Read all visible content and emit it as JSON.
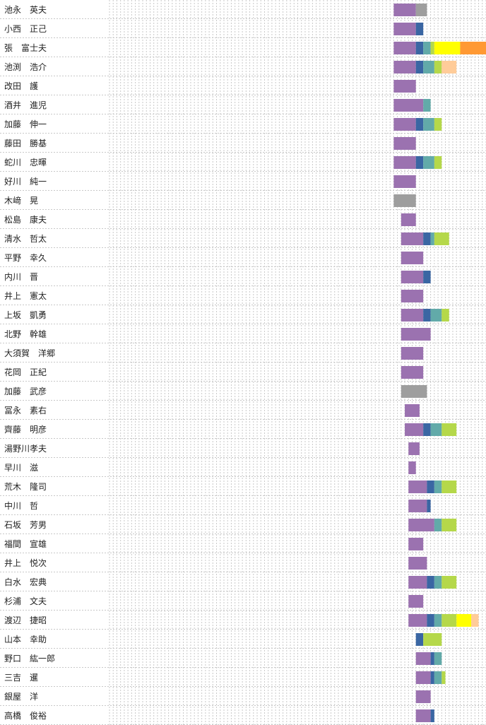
{
  "chart_data": {
    "type": "bar",
    "orientation": "horizontal-stacked-timeline",
    "grid": true,
    "colors": {
      "purple": "#9b72b0",
      "navy": "#3a66a3",
      "teal": "#62aaa9",
      "lime": "#b5d84a",
      "yellow": "#ffff00",
      "peach": "#ffcc99",
      "orange": "#ff9933",
      "gray": "#9e9e9e",
      "grid": "#c8c8c8",
      "row_divider": "#c8c8c8"
    },
    "x_unit": "grid columns",
    "x_range": [
      0,
      102
    ],
    "rows": [
      {
        "name": "池永　英夫",
        "segments": [
          {
            "start": 77,
            "len": 6,
            "color": "purple"
          },
          {
            "start": 83,
            "len": 3,
            "color": "gray"
          }
        ]
      },
      {
        "name": "小西　正己",
        "segments": [
          {
            "start": 77,
            "len": 6,
            "color": "purple"
          },
          {
            "start": 83,
            "len": 2,
            "color": "navy"
          }
        ]
      },
      {
        "name": "張　富士夫",
        "segments": [
          {
            "start": 77,
            "len": 6,
            "color": "purple"
          },
          {
            "start": 83,
            "len": 2,
            "color": "navy"
          },
          {
            "start": 85,
            "len": 2,
            "color": "teal"
          },
          {
            "start": 87,
            "len": 1,
            "color": "lime"
          },
          {
            "start": 88,
            "len": 7,
            "color": "yellow"
          },
          {
            "start": 95,
            "len": 7,
            "color": "orange"
          }
        ]
      },
      {
        "name": "池渕　浩介",
        "segments": [
          {
            "start": 77,
            "len": 6,
            "color": "purple"
          },
          {
            "start": 83,
            "len": 2,
            "color": "navy"
          },
          {
            "start": 85,
            "len": 3,
            "color": "teal"
          },
          {
            "start": 88,
            "len": 2,
            "color": "lime"
          },
          {
            "start": 90,
            "len": 4,
            "color": "peach"
          }
        ]
      },
      {
        "name": "改田　護",
        "segments": [
          {
            "start": 77,
            "len": 6,
            "color": "purple"
          }
        ]
      },
      {
        "name": "酒井　進児",
        "segments": [
          {
            "start": 77,
            "len": 8,
            "color": "purple"
          },
          {
            "start": 85,
            "len": 2,
            "color": "teal"
          }
        ]
      },
      {
        "name": "加藤　伸一",
        "segments": [
          {
            "start": 77,
            "len": 6,
            "color": "purple"
          },
          {
            "start": 83,
            "len": 2,
            "color": "navy"
          },
          {
            "start": 85,
            "len": 3,
            "color": "teal"
          },
          {
            "start": 88,
            "len": 2,
            "color": "lime"
          }
        ]
      },
      {
        "name": "藤田　勝基",
        "segments": [
          {
            "start": 77,
            "len": 6,
            "color": "purple"
          }
        ]
      },
      {
        "name": "蛇川　忠暉",
        "segments": [
          {
            "start": 77,
            "len": 6,
            "color": "purple"
          },
          {
            "start": 83,
            "len": 2,
            "color": "navy"
          },
          {
            "start": 85,
            "len": 3,
            "color": "teal"
          },
          {
            "start": 88,
            "len": 2,
            "color": "lime"
          }
        ]
      },
      {
        "name": "好川　純一",
        "segments": [
          {
            "start": 77,
            "len": 6,
            "color": "purple"
          }
        ]
      },
      {
        "name": "木﨑　晃",
        "segments": [
          {
            "start": 77,
            "len": 6,
            "color": "gray"
          }
        ]
      },
      {
        "name": "松島　康夫",
        "segments": [
          {
            "start": 79,
            "len": 4,
            "color": "purple"
          }
        ]
      },
      {
        "name": "清水　哲太",
        "segments": [
          {
            "start": 79,
            "len": 6,
            "color": "purple"
          },
          {
            "start": 85,
            "len": 2,
            "color": "navy"
          },
          {
            "start": 87,
            "len": 1,
            "color": "teal"
          },
          {
            "start": 88,
            "len": 4,
            "color": "lime"
          }
        ]
      },
      {
        "name": "平野　幸久",
        "segments": [
          {
            "start": 79,
            "len": 6,
            "color": "purple"
          }
        ]
      },
      {
        "name": "内川　晋",
        "segments": [
          {
            "start": 79,
            "len": 6,
            "color": "purple"
          },
          {
            "start": 85,
            "len": 2,
            "color": "navy"
          }
        ]
      },
      {
        "name": "井上　憲太",
        "segments": [
          {
            "start": 79,
            "len": 6,
            "color": "purple"
          }
        ]
      },
      {
        "name": "上坂　凱勇",
        "segments": [
          {
            "start": 79,
            "len": 6,
            "color": "purple"
          },
          {
            "start": 85,
            "len": 2,
            "color": "navy"
          },
          {
            "start": 87,
            "len": 3,
            "color": "teal"
          },
          {
            "start": 90,
            "len": 2,
            "color": "lime"
          }
        ]
      },
      {
        "name": "北野　幹雄",
        "segments": [
          {
            "start": 79,
            "len": 8,
            "color": "purple"
          }
        ]
      },
      {
        "name": "大須賀　洋郷",
        "segments": [
          {
            "start": 79,
            "len": 6,
            "color": "purple"
          }
        ]
      },
      {
        "name": "花岡　正紀",
        "segments": [
          {
            "start": 79,
            "len": 6,
            "color": "purple"
          }
        ]
      },
      {
        "name": "加藤　武彦",
        "segments": [
          {
            "start": 79,
            "len": 7,
            "color": "gray"
          }
        ]
      },
      {
        "name": "冨永　素右",
        "segments": [
          {
            "start": 80,
            "len": 4,
            "color": "purple"
          }
        ]
      },
      {
        "name": "齊藤　明彦",
        "segments": [
          {
            "start": 80,
            "len": 5,
            "color": "purple"
          },
          {
            "start": 85,
            "len": 2,
            "color": "navy"
          },
          {
            "start": 87,
            "len": 3,
            "color": "teal"
          },
          {
            "start": 90,
            "len": 4,
            "color": "lime"
          }
        ]
      },
      {
        "name": "湯野川孝夫",
        "segments": [
          {
            "start": 81,
            "len": 3,
            "color": "purple"
          }
        ]
      },
      {
        "name": "早川　滋",
        "segments": [
          {
            "start": 81,
            "len": 2,
            "color": "purple"
          }
        ]
      },
      {
        "name": "荒木　隆司",
        "segments": [
          {
            "start": 81,
            "len": 5,
            "color": "purple"
          },
          {
            "start": 86,
            "len": 2,
            "color": "navy"
          },
          {
            "start": 88,
            "len": 2,
            "color": "teal"
          },
          {
            "start": 90,
            "len": 4,
            "color": "lime"
          }
        ]
      },
      {
        "name": "中川　哲",
        "segments": [
          {
            "start": 81,
            "len": 5,
            "color": "purple"
          },
          {
            "start": 86,
            "len": 1,
            "color": "navy"
          }
        ]
      },
      {
        "name": "石坂　芳男",
        "segments": [
          {
            "start": 81,
            "len": 7,
            "color": "purple"
          },
          {
            "start": 88,
            "len": 2,
            "color": "teal"
          },
          {
            "start": 90,
            "len": 4,
            "color": "lime"
          }
        ]
      },
      {
        "name": "福間　宣雄",
        "segments": [
          {
            "start": 81,
            "len": 4,
            "color": "purple"
          }
        ]
      },
      {
        "name": "井上　悦次",
        "segments": [
          {
            "start": 81,
            "len": 5,
            "color": "purple"
          }
        ]
      },
      {
        "name": "白水　宏典",
        "segments": [
          {
            "start": 81,
            "len": 5,
            "color": "purple"
          },
          {
            "start": 86,
            "len": 2,
            "color": "navy"
          },
          {
            "start": 88,
            "len": 2,
            "color": "teal"
          },
          {
            "start": 90,
            "len": 4,
            "color": "lime"
          }
        ]
      },
      {
        "name": "杉浦　文夫",
        "segments": [
          {
            "start": 81,
            "len": 4,
            "color": "purple"
          }
        ]
      },
      {
        "name": "渡辺　捷昭",
        "segments": [
          {
            "start": 81,
            "len": 5,
            "color": "purple"
          },
          {
            "start": 86,
            "len": 2,
            "color": "navy"
          },
          {
            "start": 88,
            "len": 2,
            "color": "teal"
          },
          {
            "start": 90,
            "len": 4,
            "color": "lime"
          },
          {
            "start": 94,
            "len": 4,
            "color": "yellow"
          },
          {
            "start": 98,
            "len": 2,
            "color": "peach"
          }
        ]
      },
      {
        "name": "山本　幸助",
        "segments": [
          {
            "start": 83,
            "len": 2,
            "color": "navy"
          },
          {
            "start": 85,
            "len": 5,
            "color": "lime"
          }
        ]
      },
      {
        "name": "野口　紘一郎",
        "segments": [
          {
            "start": 83,
            "len": 4,
            "color": "purple"
          },
          {
            "start": 87,
            "len": 1,
            "color": "navy"
          },
          {
            "start": 88,
            "len": 2,
            "color": "teal"
          }
        ]
      },
      {
        "name": "三吉　暹",
        "segments": [
          {
            "start": 83,
            "len": 4,
            "color": "purple"
          },
          {
            "start": 87,
            "len": 1,
            "color": "navy"
          },
          {
            "start": 88,
            "len": 2,
            "color": "teal"
          },
          {
            "start": 90,
            "len": 1,
            "color": "lime"
          }
        ]
      },
      {
        "name": "銀屋　洋",
        "segments": [
          {
            "start": 83,
            "len": 4,
            "color": "purple"
          }
        ]
      },
      {
        "name": "高橋　俊裕",
        "segments": [
          {
            "start": 83,
            "len": 4,
            "color": "purple"
          },
          {
            "start": 87,
            "len": 1,
            "color": "navy"
          }
        ]
      }
    ]
  }
}
